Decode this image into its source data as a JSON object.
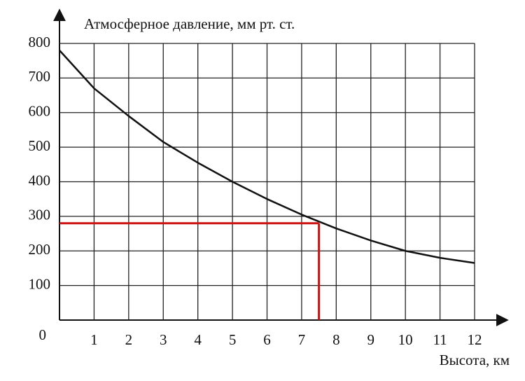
{
  "chart_data": {
    "type": "line",
    "title": "Атмосферное давление, мм рт. ст.",
    "x_label": "Высота, км",
    "x": [
      0,
      1,
      2,
      3,
      4,
      5,
      6,
      7,
      8,
      9,
      10,
      11,
      12
    ],
    "series": [
      {
        "color": "#111111",
        "values": [
          780,
          670,
          590,
          515,
          455,
          400,
          350,
          305,
          265,
          230,
          200,
          180,
          165
        ]
      }
    ],
    "marker": {
      "x": 7.5,
      "y": 280,
      "color": "#cc1111"
    },
    "xlim": [
      0,
      12
    ],
    "xticks": [
      1,
      2,
      3,
      4,
      5,
      6,
      7,
      8,
      9,
      10,
      11,
      12
    ],
    "ylim": [
      0,
      800
    ],
    "yticks": [
      0,
      100,
      200,
      300,
      400,
      500,
      600,
      700,
      800
    ],
    "grid": true
  }
}
